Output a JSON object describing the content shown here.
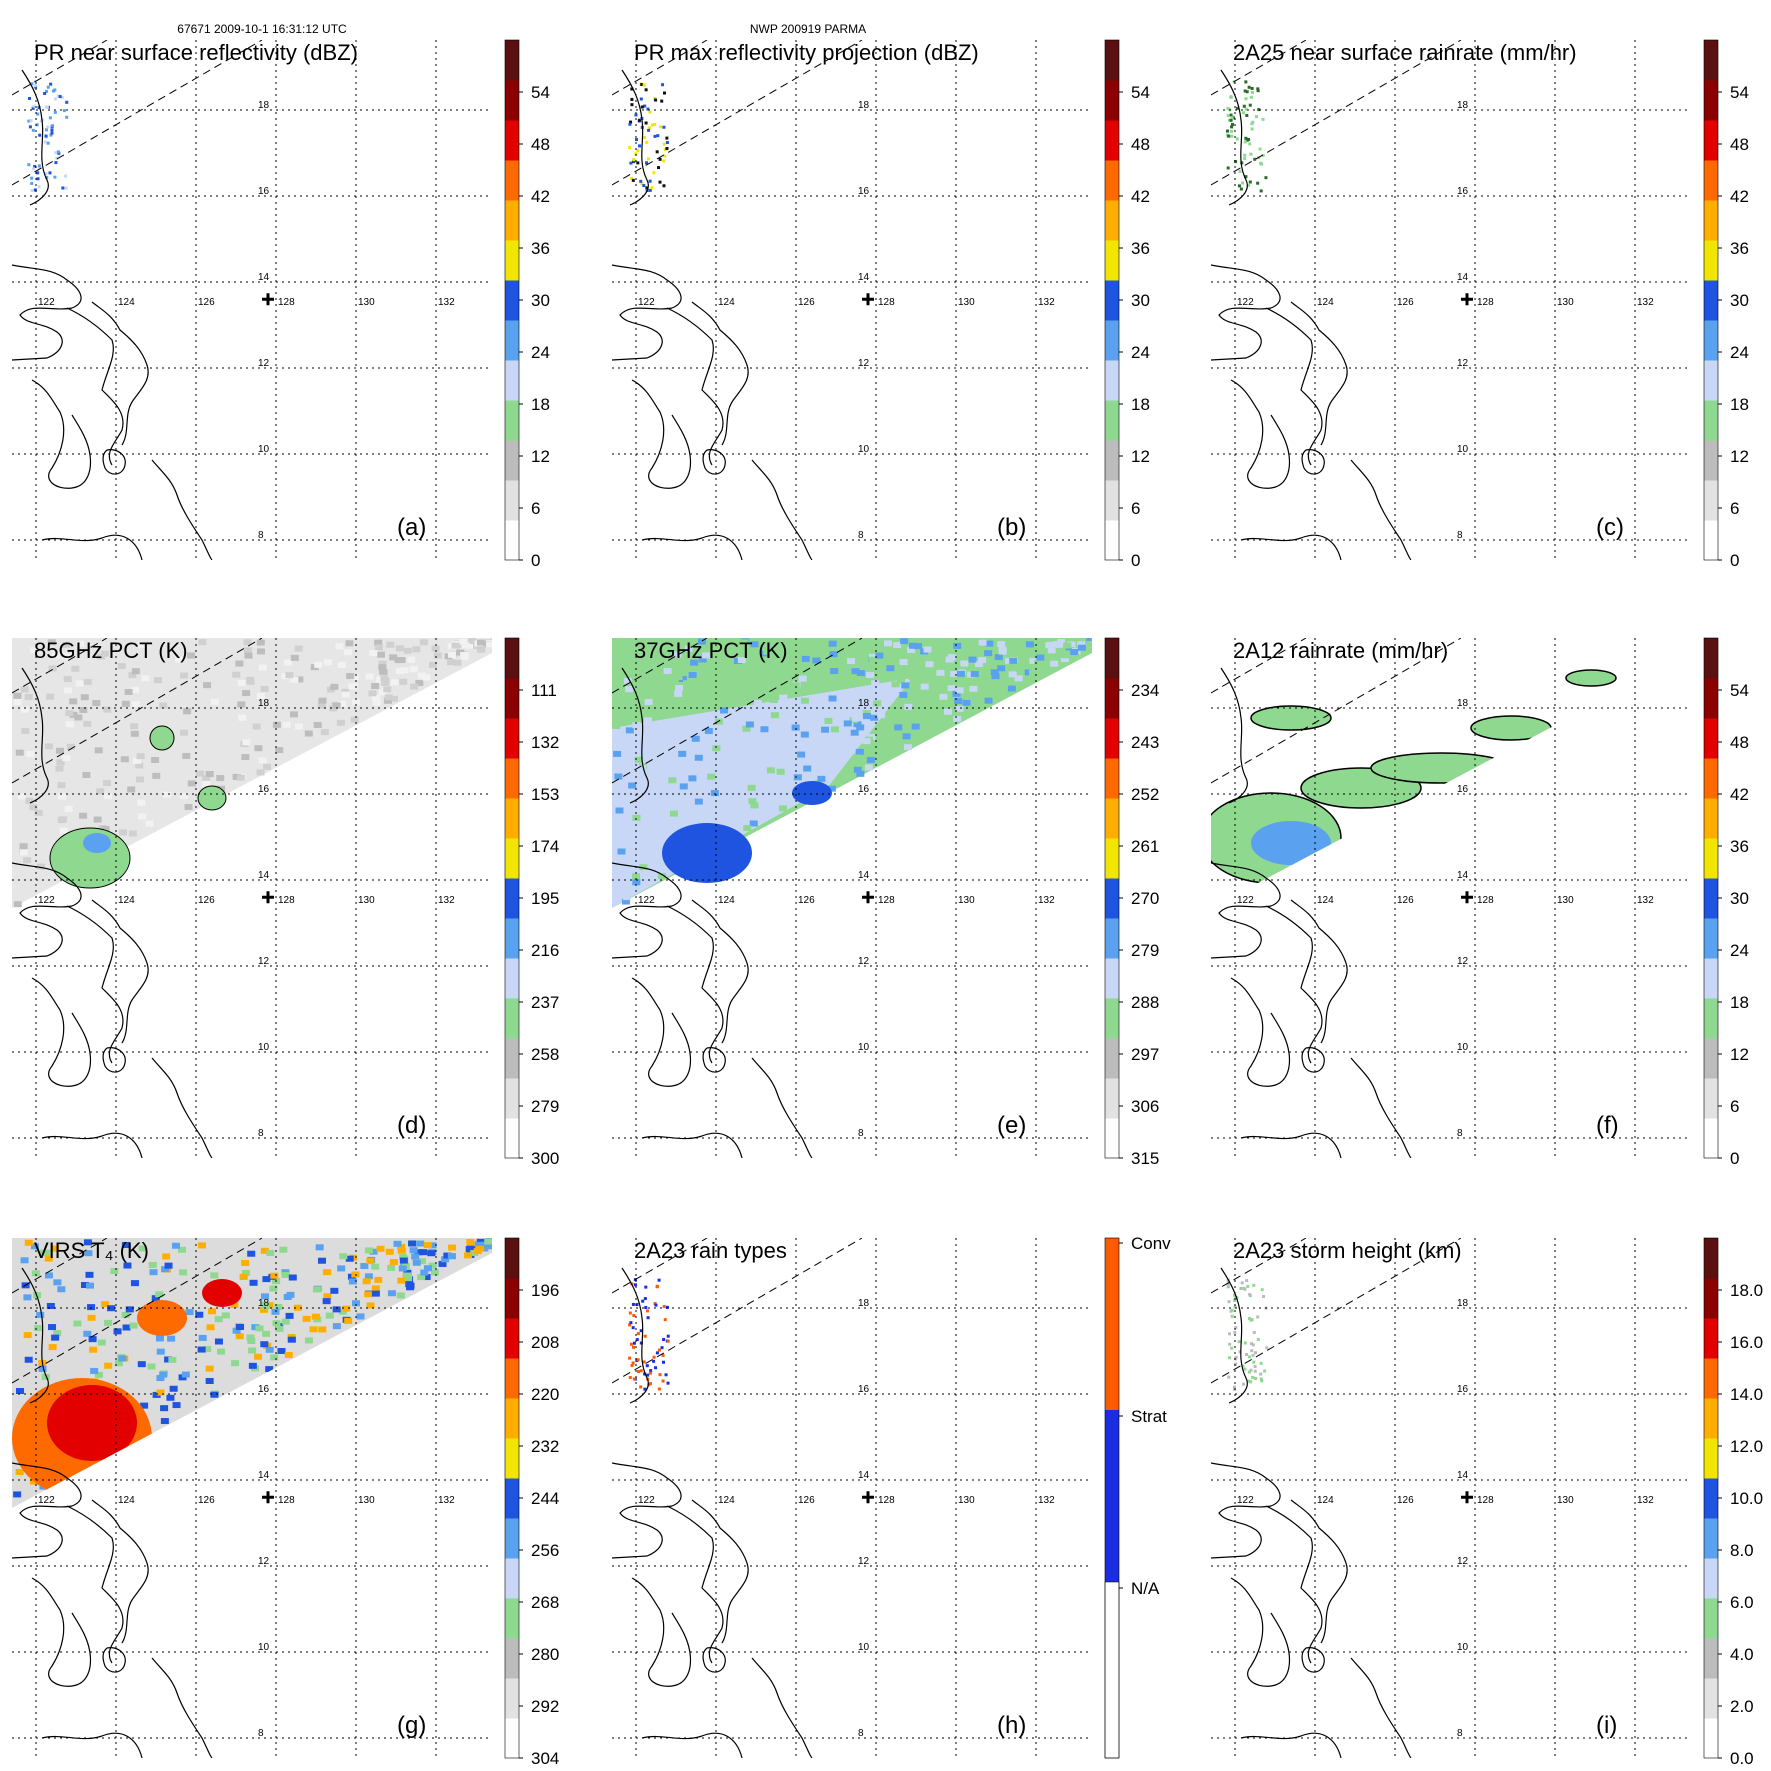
{
  "header": {
    "left": "67671 2009-10-1 16:31:12 UTC",
    "center": "NWP 200919 PARMA"
  },
  "map": {
    "lon_ticks": [
      "122",
      "124",
      "126",
      "128",
      "130",
      "132"
    ],
    "lat_ticks": [
      "18",
      "16",
      "14",
      "12",
      "10",
      "8"
    ],
    "center_marker": {
      "lon": 127.8,
      "lat": 13.6
    }
  },
  "colors": {
    "dbz_scale": [
      "#ffffff",
      "#e2e2e2",
      "#bcbcbc",
      "#8fd88f",
      "#c7d7f5",
      "#5aa2f0",
      "#1f54e0",
      "#f2e600",
      "#ffae00",
      "#ff6a00",
      "#e20000",
      "#8b0000",
      "#5a1010"
    ],
    "raintype": {
      "conv": "#ff5a00",
      "strat": "#1a2de0",
      "na": "#ffffff"
    }
  },
  "chart_data": [
    {
      "panel": "a",
      "type": "heatmap",
      "title": "PR near surface reflectivity (dBZ)",
      "label": "(a)",
      "colorbar_ticks": [
        "54",
        "48",
        "42",
        "36",
        "30",
        "24",
        "18",
        "12",
        "6",
        "0"
      ]
    },
    {
      "panel": "b",
      "type": "heatmap",
      "title": "PR max reflectivity projection (dBZ)",
      "label": "(b)",
      "colorbar_ticks": [
        "54",
        "48",
        "42",
        "36",
        "30",
        "24",
        "18",
        "12",
        "6",
        "0"
      ]
    },
    {
      "panel": "c",
      "type": "heatmap",
      "title": "2A25 near surface rainrate (mm/hr)",
      "label": "(c)",
      "colorbar_ticks": [
        "54",
        "48",
        "42",
        "36",
        "30",
        "24",
        "18",
        "12",
        "6",
        "0"
      ]
    },
    {
      "panel": "d",
      "type": "heatmap",
      "title": "85GHz PCT (K)",
      "label": "(d)",
      "colorbar_ticks": [
        "111",
        "132",
        "153",
        "174",
        "195",
        "216",
        "237",
        "258",
        "279",
        "300"
      ]
    },
    {
      "panel": "e",
      "type": "heatmap",
      "title": "37GHz PCT (K)",
      "label": "(e)",
      "colorbar_ticks": [
        "234",
        "243",
        "252",
        "261",
        "270",
        "279",
        "288",
        "297",
        "306",
        "315"
      ]
    },
    {
      "panel": "f",
      "type": "heatmap",
      "title": "2A12 rainrate (mm/hr)",
      "label": "(f)",
      "colorbar_ticks": [
        "54",
        "48",
        "42",
        "36",
        "30",
        "24",
        "18",
        "12",
        "6",
        "0"
      ]
    },
    {
      "panel": "g",
      "type": "heatmap",
      "title": "VIRS T₄ (K)",
      "label": "(g)",
      "colorbar_ticks": [
        "196",
        "208",
        "220",
        "232",
        "244",
        "256",
        "268",
        "280",
        "292",
        "304"
      ]
    },
    {
      "panel": "h",
      "type": "heatmap",
      "title": "2A23 rain types",
      "label": "(h)",
      "colorbar_ticks": [
        "Conv",
        "Strat",
        "N/A"
      ]
    },
    {
      "panel": "i",
      "type": "heatmap",
      "title": "2A23 storm height (km)",
      "label": "(i)",
      "colorbar_ticks": [
        "18.0",
        "16.0",
        "14.0",
        "12.0",
        "10.0",
        "8.0",
        "6.0",
        "4.0",
        "2.0",
        "0.0"
      ]
    }
  ]
}
